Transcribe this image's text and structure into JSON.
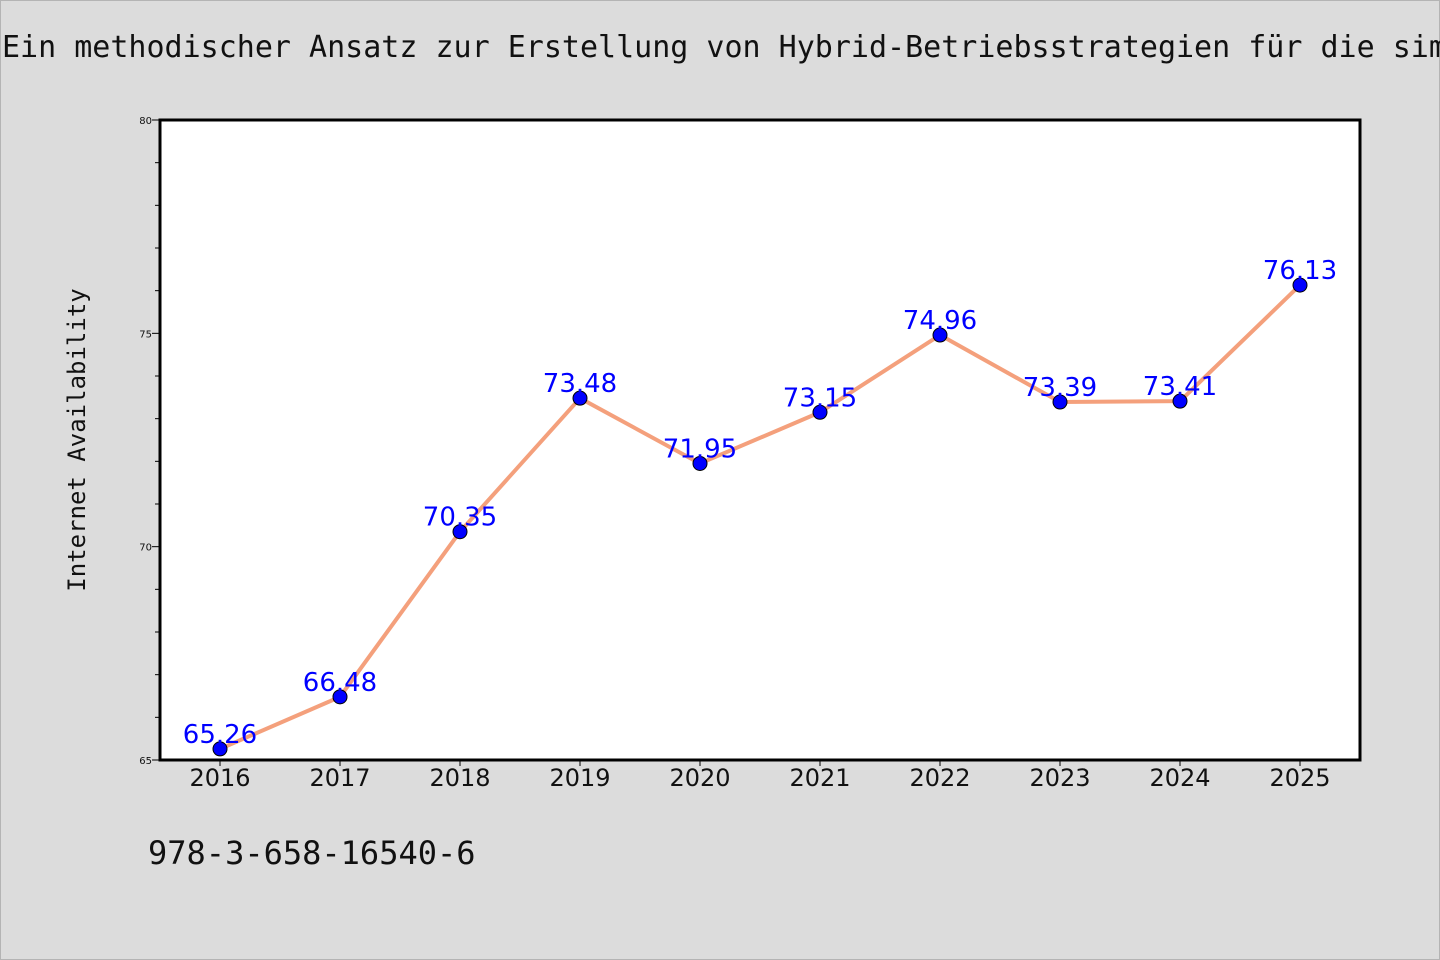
{
  "title": "Ein methodischer Ansatz zur Erstellung von Hybrid-Betriebsstrategien für die sim",
  "footer_text": "978-3-658-16540-6",
  "chart_data": {
    "type": "line",
    "title": "Ein methodischer Ansatz zur Erstellung von Hybrid-Betriebsstrategien für die sim",
    "xlabel": "",
    "ylabel": "Internet Availability",
    "categories": [
      "2016",
      "2017",
      "2018",
      "2019",
      "2020",
      "2021",
      "2022",
      "2023",
      "2024",
      "2025"
    ],
    "series": [
      {
        "values": [
          65.26,
          66.48,
          70.35,
          73.48,
          71.95,
          73.15,
          74.96,
          73.39,
          73.41,
          76.13
        ],
        "labels": [
          "65.26",
          "66.48",
          "70.35",
          "73.48",
          "71.95",
          "73.15",
          "74.96",
          "73.39",
          "73.41",
          "76.13"
        ]
      }
    ],
    "ylim": [
      65,
      80
    ],
    "yticks": [
      "65",
      "70",
      "75",
      "80"
    ],
    "grid": false,
    "legend": "none",
    "colors": {
      "line": "#f4a07c",
      "marker": "#0000ff",
      "data_label": "#0000ff",
      "background": "#dcdcdc",
      "plot_area": "#ffffff"
    }
  }
}
